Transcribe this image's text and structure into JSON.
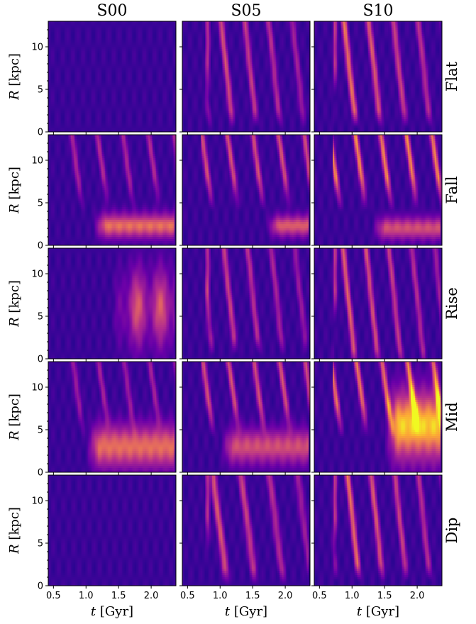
{
  "chart_data": {
    "type": "heatmap",
    "columns": [
      "S00",
      "S05",
      "S10"
    ],
    "rows": [
      "Flat",
      "Fall",
      "Rise",
      "Mid",
      "Dip"
    ],
    "xlabel_var": "t",
    "xlabel_unit": "[Gyr]",
    "ylabel_var": "R",
    "ylabel_unit": "[kpc]",
    "xlim": [
      0.42,
      2.38
    ],
    "ylim": [
      0,
      13
    ],
    "xticks": [
      0.5,
      1.0,
      1.5,
      2.0
    ],
    "xtick_labels": [
      "0.5",
      "1.0",
      "1.5",
      "2.0"
    ],
    "yticks": [
      0,
      5,
      10
    ],
    "ytick_labels": [
      "0",
      "5",
      "10"
    ],
    "colormap": "plasma",
    "contour_colors": [
      "#c8b4d6",
      "#8a8a8a",
      "#444444"
    ],
    "features": [
      [
        {
          "type": "none"
        },
        {
          "type": "streaks",
          "x0": 0.75,
          "x1": 2.35,
          "rmin": 2.5,
          "rmax": 13,
          "amp": 0.55
        },
        {
          "type": "streaks",
          "x0": 0.68,
          "x1": 2.35,
          "rmin": 2.5,
          "rmax": 13,
          "amp": 0.65
        }
      ],
      [
        {
          "type": "band",
          "x0": 1.1,
          "x1": 2.35,
          "r0": 2.3,
          "rw": 1.4,
          "amp": 0.6,
          "streaks": 0.35
        },
        {
          "type": "band",
          "x0": 1.7,
          "x1": 2.35,
          "r0": 2.3,
          "rw": 1.2,
          "amp": 0.55,
          "streaks": 0.5
        },
        {
          "type": "band",
          "x0": 1.3,
          "x1": 2.35,
          "r0": 2.0,
          "rw": 1.3,
          "amp": 0.5,
          "streaks": 0.65
        }
      ],
      [
        {
          "type": "blob",
          "x0": 1.4,
          "x1": 2.35,
          "r0": 6.0,
          "rw": 4.5,
          "amp": 0.55
        },
        {
          "type": "streaks",
          "x0": 0.75,
          "x1": 2.35,
          "rmin": 2.5,
          "rmax": 13,
          "amp": 0.5
        },
        {
          "type": "streaks",
          "x0": 0.68,
          "x1": 2.35,
          "rmin": 1.0,
          "rmax": 13,
          "amp": 0.6
        }
      ],
      [
        {
          "type": "band",
          "x0": 1.0,
          "x1": 2.35,
          "r0": 3.0,
          "rw": 2.5,
          "amp": 0.6,
          "streaks": 0.3
        },
        {
          "type": "band",
          "x0": 1.0,
          "x1": 2.35,
          "r0": 3.0,
          "rw": 2.0,
          "amp": 0.5,
          "streaks": 0.5
        },
        {
          "type": "band",
          "x0": 1.5,
          "x1": 2.35,
          "r0": 5.5,
          "rw": 4.0,
          "amp": 0.8,
          "streaks": 0.6
        }
      ],
      [
        {
          "type": "none"
        },
        {
          "type": "streaks",
          "x0": 0.75,
          "x1": 2.35,
          "rmin": 2.0,
          "rmax": 13,
          "amp": 0.55
        },
        {
          "type": "streaks",
          "x0": 0.68,
          "x1": 2.35,
          "rmin": 2.5,
          "rmax": 13,
          "amp": 0.65
        }
      ]
    ]
  }
}
